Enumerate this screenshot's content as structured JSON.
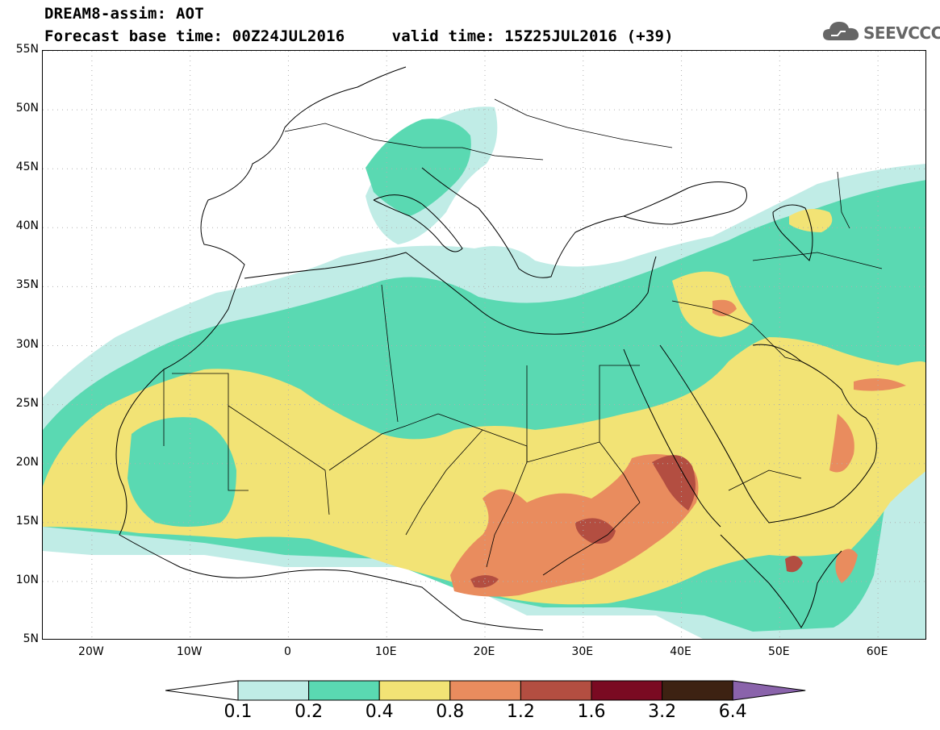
{
  "header": {
    "title_line1": "DREAM8-assim: AOT",
    "title_line2": "Forecast base time: 00Z24JUL2016     valid time: 15Z25JUL2016 (+39)",
    "logo_text": "SEEVCCC"
  },
  "map": {
    "variable": "AOT",
    "extent": {
      "lon": [
        -25,
        65
      ],
      "lat": [
        5,
        55
      ]
    },
    "lat_ticks": [
      {
        "value": 55,
        "label": "55N"
      },
      {
        "value": 50,
        "label": "50N"
      },
      {
        "value": 45,
        "label": "45N"
      },
      {
        "value": 40,
        "label": "40N"
      },
      {
        "value": 35,
        "label": "35N"
      },
      {
        "value": 30,
        "label": "30N"
      },
      {
        "value": 25,
        "label": "25N"
      },
      {
        "value": 20,
        "label": "20N"
      },
      {
        "value": 15,
        "label": "15N"
      },
      {
        "value": 10,
        "label": "10N"
      },
      {
        "value": 5,
        "label": "5N"
      }
    ],
    "lon_ticks": [
      {
        "value": -20,
        "label": "20W"
      },
      {
        "value": -10,
        "label": "10W"
      },
      {
        "value": 0,
        "label": "0"
      },
      {
        "value": 10,
        "label": "10E"
      },
      {
        "value": 20,
        "label": "20E"
      },
      {
        "value": 30,
        "label": "30E"
      },
      {
        "value": 40,
        "label": "40E"
      },
      {
        "value": 50,
        "label": "50E"
      },
      {
        "value": 60,
        "label": "60E"
      }
    ],
    "grid": true
  },
  "colorbar": {
    "levels": [
      "0.1",
      "0.2",
      "0.4",
      "0.8",
      "1.2",
      "1.6",
      "3.2",
      "6.4"
    ],
    "colors": [
      "#ffffff",
      "#c0ece6",
      "#5ad9b2",
      "#f2e375",
      "#e98c5e",
      "#b34e41",
      "#7a0a22",
      "#3d2212",
      "#8a63ab"
    ]
  }
}
